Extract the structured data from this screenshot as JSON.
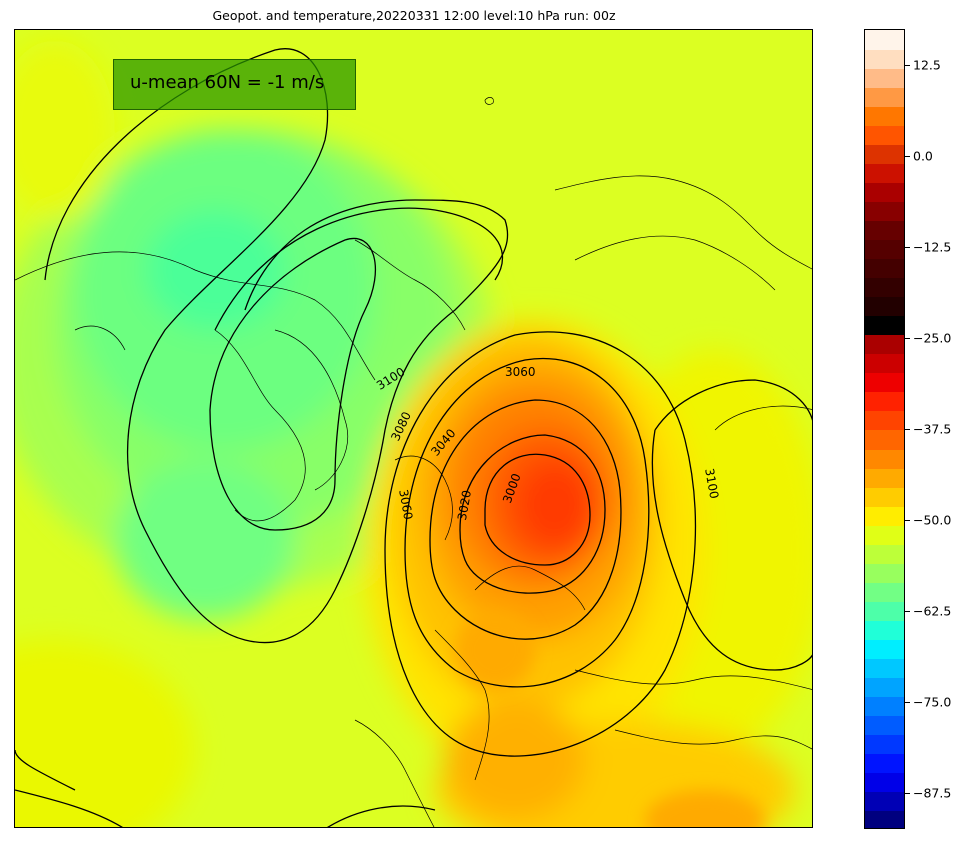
{
  "title": "Geopot. and temperature,20220331 12:00 level:10 hPa run: 00z",
  "annotation": "u-mean 60N = -1 m/s",
  "contour_labels": [
    "3100",
    "3060",
    "3080",
    "3040",
    "3060",
    "3020",
    "3000",
    "3100"
  ],
  "colorbar": {
    "ticks": [
      "12.5",
      "0.0",
      "−12.5",
      "−25.0",
      "−37.5",
      "−50.0",
      "−62.5",
      "−75.0",
      "−87.5"
    ],
    "tick_values": [
      12.5,
      0.0,
      -12.5,
      -25.0,
      -37.5,
      -50.0,
      -62.5,
      -75.0,
      -87.5
    ],
    "range": [
      -92.5,
      17.5
    ],
    "colors": [
      "#00007f",
      "#0000b5",
      "#0000e8",
      "#0014ff",
      "#0038ff",
      "#005cff",
      "#0080ff",
      "#00a4ff",
      "#00c8ff",
      "#00eeff",
      "#20ffd8",
      "#4dffa9",
      "#72ff85",
      "#98ff5e",
      "#bdff39",
      "#e0ff16",
      "#ffed00",
      "#ffcc00",
      "#ffaa00",
      "#ff8800",
      "#ff6600",
      "#ff4400",
      "#ff2200",
      "#ee0000",
      "#cc0000",
      "#aa0000",
      "#000000",
      "#220000",
      "#330000",
      "#440000",
      "#550000",
      "#660000",
      "#880000",
      "#aa0000",
      "#cc1100",
      "#dd3300",
      "#ff5500",
      "#ff7700",
      "#ff9944",
      "#ffbb88",
      "#ffdec0",
      "#fff4ea"
    ]
  },
  "colors": {
    "background": "#d8ff28",
    "cold": "#6cff80",
    "warm_core": "#ff3300",
    "annotation_box": "#2a9600"
  }
}
